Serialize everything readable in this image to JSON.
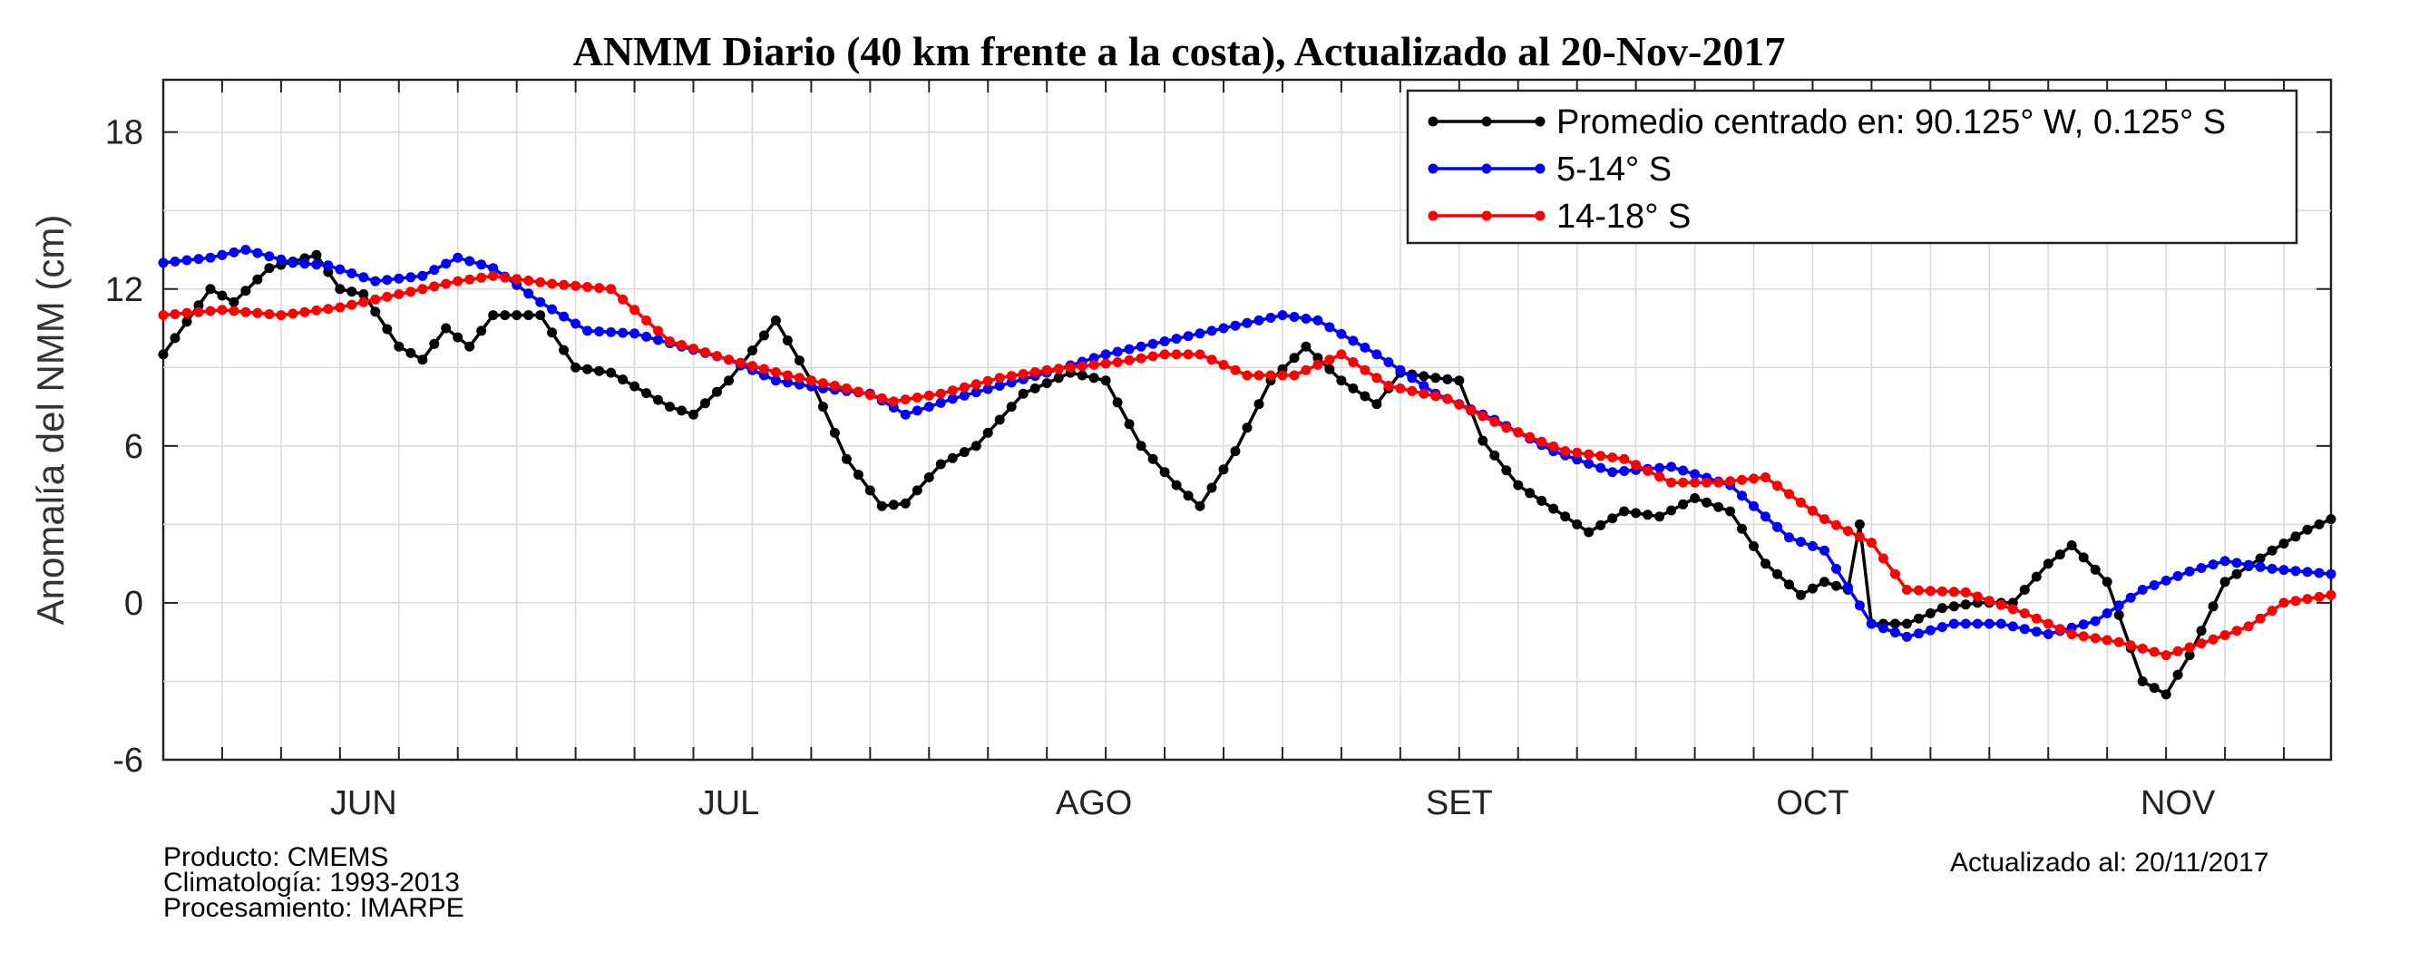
{
  "chart_data": {
    "type": "line",
    "title": "ANMM Diario (40 km frente a la costa), Actualizado al 20-Nov-2017",
    "ylabel": "Anomalía del NMM (cm)",
    "xlabel": "",
    "ylim": [
      -6,
      20
    ],
    "yticks": [
      "-6",
      "0",
      "6",
      "12",
      "18"
    ],
    "x_start": "2017-05-21",
    "x_end": "2017-11-21",
    "month_labels": [
      {
        "label": "JUN",
        "date": "2017-06-07"
      },
      {
        "label": "JUL",
        "date": "2017-07-08"
      },
      {
        "label": "AGO",
        "date": "2017-08-08"
      },
      {
        "label": "SET",
        "date": "2017-09-08"
      },
      {
        "label": "OCT",
        "date": "2017-10-08"
      },
      {
        "label": "NOV",
        "date": "2017-11-08"
      }
    ],
    "grid": true,
    "legend_position": "top-right",
    "series": [
      {
        "name": "Promedio centrado en: 90.125° W, 0.125° S",
        "color": "#000000",
        "points": [
          [
            "2017-05-21",
            9.5
          ],
          [
            "2017-05-25",
            12.0
          ],
          [
            "2017-05-27",
            11.5
          ],
          [
            "2017-05-30",
            12.8
          ],
          [
            "2017-06-03",
            13.3
          ],
          [
            "2017-06-05",
            12.0
          ],
          [
            "2017-06-07",
            11.8
          ],
          [
            "2017-06-10",
            9.8
          ],
          [
            "2017-06-12",
            9.3
          ],
          [
            "2017-06-14",
            10.5
          ],
          [
            "2017-06-16",
            9.8
          ],
          [
            "2017-06-18",
            11.0
          ],
          [
            "2017-06-22",
            11.0
          ],
          [
            "2017-06-25",
            9.0
          ],
          [
            "2017-06-28",
            8.8
          ],
          [
            "2017-07-03",
            7.5
          ],
          [
            "2017-07-05",
            7.2
          ],
          [
            "2017-07-08",
            8.5
          ],
          [
            "2017-07-12",
            10.8
          ],
          [
            "2017-07-15",
            8.5
          ],
          [
            "2017-07-18",
            5.5
          ],
          [
            "2017-07-21",
            3.7
          ],
          [
            "2017-07-23",
            3.8
          ],
          [
            "2017-07-26",
            5.3
          ],
          [
            "2017-07-29",
            6.0
          ],
          [
            "2017-08-02",
            8.0
          ],
          [
            "2017-08-06",
            8.8
          ],
          [
            "2017-08-09",
            8.5
          ],
          [
            "2017-08-12",
            6.0
          ],
          [
            "2017-08-15",
            4.5
          ],
          [
            "2017-08-17",
            3.7
          ],
          [
            "2017-08-20",
            5.8
          ],
          [
            "2017-08-23",
            8.5
          ],
          [
            "2017-08-26",
            9.8
          ],
          [
            "2017-08-29",
            8.5
          ],
          [
            "2017-09-01",
            7.6
          ],
          [
            "2017-09-03",
            8.8
          ],
          [
            "2017-09-06",
            8.6
          ],
          [
            "2017-09-08",
            8.5
          ],
          [
            "2017-09-10",
            6.2
          ],
          [
            "2017-09-13",
            4.5
          ],
          [
            "2017-09-16",
            3.6
          ],
          [
            "2017-09-19",
            2.7
          ],
          [
            "2017-09-22",
            3.5
          ],
          [
            "2017-09-25",
            3.3
          ],
          [
            "2017-09-28",
            4.0
          ],
          [
            "2017-10-01",
            3.5
          ],
          [
            "2017-10-04",
            1.5
          ],
          [
            "2017-10-07",
            0.3
          ],
          [
            "2017-10-09",
            0.8
          ],
          [
            "2017-10-11",
            0.5
          ],
          [
            "2017-10-12",
            3.0
          ],
          [
            "2017-10-13",
            -0.8
          ],
          [
            "2017-10-16",
            -0.8
          ],
          [
            "2017-10-19",
            -0.2
          ],
          [
            "2017-10-22",
            0.0
          ],
          [
            "2017-10-25",
            0.0
          ],
          [
            "2017-10-28",
            1.5
          ],
          [
            "2017-10-30",
            2.2
          ],
          [
            "2017-11-02",
            0.8
          ],
          [
            "2017-11-05",
            -3.0
          ],
          [
            "2017-11-07",
            -3.5
          ],
          [
            "2017-11-09",
            -2.0
          ],
          [
            "2017-11-12",
            0.8
          ],
          [
            "2017-11-16",
            2.0
          ],
          [
            "2017-11-19",
            2.8
          ],
          [
            "2017-11-21",
            3.2
          ]
        ]
      },
      {
        "name": "5-14° S",
        "color": "#0000ff",
        "points": [
          [
            "2017-05-21",
            13.0
          ],
          [
            "2017-05-25",
            13.2
          ],
          [
            "2017-05-28",
            13.5
          ],
          [
            "2017-06-01",
            13.0
          ],
          [
            "2017-06-04",
            12.9
          ],
          [
            "2017-06-08",
            12.3
          ],
          [
            "2017-06-12",
            12.5
          ],
          [
            "2017-06-15",
            13.2
          ],
          [
            "2017-06-18",
            12.8
          ],
          [
            "2017-06-22",
            11.5
          ],
          [
            "2017-06-26",
            10.4
          ],
          [
            "2017-06-30",
            10.3
          ],
          [
            "2017-07-04",
            9.8
          ],
          [
            "2017-07-08",
            9.3
          ],
          [
            "2017-07-12",
            8.5
          ],
          [
            "2017-07-16",
            8.2
          ],
          [
            "2017-07-20",
            8.0
          ],
          [
            "2017-07-23",
            7.2
          ],
          [
            "2017-07-27",
            7.8
          ],
          [
            "2017-07-31",
            8.3
          ],
          [
            "2017-08-04",
            8.8
          ],
          [
            "2017-08-09",
            9.5
          ],
          [
            "2017-08-14",
            10.0
          ],
          [
            "2017-08-19",
            10.5
          ],
          [
            "2017-08-24",
            11.0
          ],
          [
            "2017-08-27",
            10.8
          ],
          [
            "2017-09-01",
            9.5
          ],
          [
            "2017-09-06",
            8.0
          ],
          [
            "2017-09-11",
            7.0
          ],
          [
            "2017-09-16",
            5.8
          ],
          [
            "2017-09-21",
            5.0
          ],
          [
            "2017-09-26",
            5.2
          ],
          [
            "2017-10-01",
            4.5
          ],
          [
            "2017-10-06",
            2.5
          ],
          [
            "2017-10-09",
            2.0
          ],
          [
            "2017-10-13",
            -0.8
          ],
          [
            "2017-10-16",
            -1.3
          ],
          [
            "2017-10-20",
            -0.8
          ],
          [
            "2017-10-24",
            -0.8
          ],
          [
            "2017-10-28",
            -1.2
          ],
          [
            "2017-11-01",
            -0.7
          ],
          [
            "2017-11-05",
            0.5
          ],
          [
            "2017-11-09",
            1.2
          ],
          [
            "2017-11-12",
            1.6
          ],
          [
            "2017-11-16",
            1.3
          ],
          [
            "2017-11-21",
            1.1
          ]
        ]
      },
      {
        "name": "14-18° S",
        "color": "#ff0000",
        "points": [
          [
            "2017-05-21",
            11.0
          ],
          [
            "2017-05-26",
            11.2
          ],
          [
            "2017-05-31",
            11.0
          ],
          [
            "2017-06-05",
            11.3
          ],
          [
            "2017-06-10",
            11.8
          ],
          [
            "2017-06-15",
            12.3
          ],
          [
            "2017-06-18",
            12.5
          ],
          [
            "2017-06-23",
            12.2
          ],
          [
            "2017-06-28",
            12.0
          ],
          [
            "2017-07-03",
            10.0
          ],
          [
            "2017-07-08",
            9.3
          ],
          [
            "2017-07-13",
            8.7
          ],
          [
            "2017-07-18",
            8.2
          ],
          [
            "2017-07-22",
            7.7
          ],
          [
            "2017-07-26",
            8.0
          ],
          [
            "2017-07-31",
            8.6
          ],
          [
            "2017-08-04",
            8.9
          ],
          [
            "2017-08-10",
            9.2
          ],
          [
            "2017-08-14",
            9.5
          ],
          [
            "2017-08-17",
            9.5
          ],
          [
            "2017-08-21",
            8.7
          ],
          [
            "2017-08-25",
            8.7
          ],
          [
            "2017-08-29",
            9.5
          ],
          [
            "2017-09-02",
            8.3
          ],
          [
            "2017-09-07",
            7.8
          ],
          [
            "2017-09-12",
            6.7
          ],
          [
            "2017-09-17",
            5.8
          ],
          [
            "2017-09-22",
            5.5
          ],
          [
            "2017-09-26",
            4.6
          ],
          [
            "2017-09-30",
            4.6
          ],
          [
            "2017-10-04",
            4.8
          ],
          [
            "2017-10-09",
            3.2
          ],
          [
            "2017-10-13",
            2.3
          ],
          [
            "2017-10-16",
            0.5
          ],
          [
            "2017-10-21",
            0.4
          ],
          [
            "2017-10-26",
            -0.4
          ],
          [
            "2017-10-30",
            -1.2
          ],
          [
            "2017-11-03",
            -1.5
          ],
          [
            "2017-11-07",
            -2.0
          ],
          [
            "2017-11-11",
            -1.4
          ],
          [
            "2017-11-14",
            -0.9
          ],
          [
            "2017-11-17",
            0.0
          ],
          [
            "2017-11-21",
            0.3
          ]
        ]
      }
    ]
  },
  "footer": {
    "producto": "Producto: CMEMS",
    "climatologia": "Climatología: 1993-2013",
    "procesamiento": "Procesamiento: IMARPE",
    "actualizado": "Actualizado al: 20/11/2017"
  }
}
